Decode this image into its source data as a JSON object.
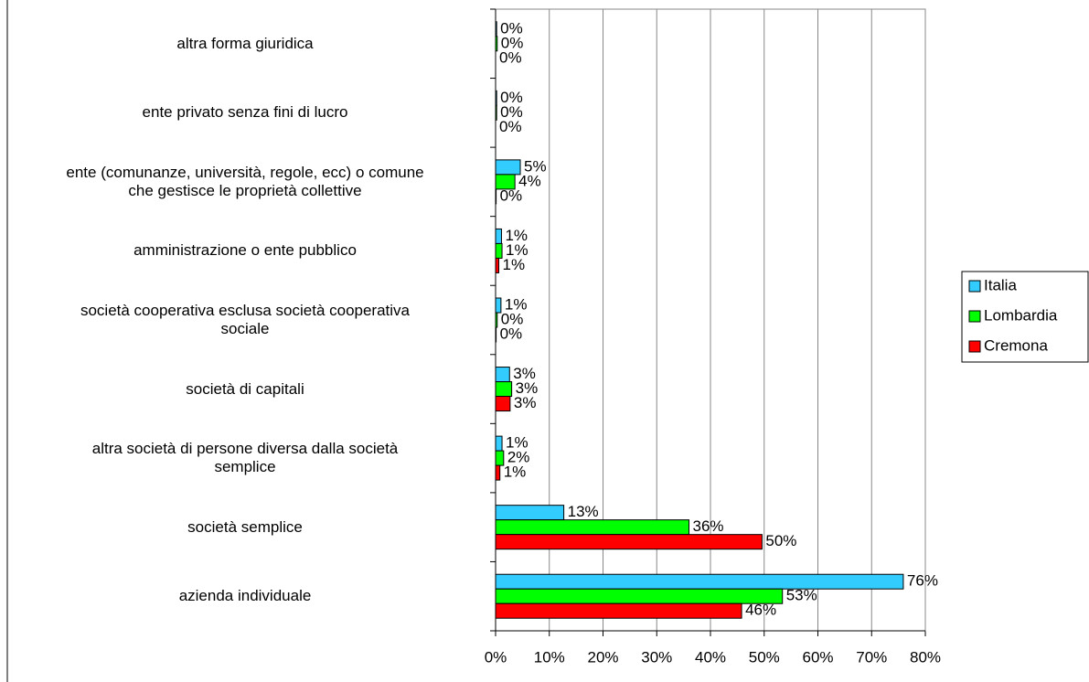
{
  "chart_data": {
    "type": "hbar",
    "categories": [
      "altra forma giuridica",
      "ente privato senza fini di lucro",
      "ente (comunanze, università, regole, ecc) o comune\nche gestisce le proprietà collettive",
      "amministrazione o ente pubblico",
      "società cooperativa esclusa società cooperativa\nsociale",
      "società di capitali",
      "altra società di persone diversa dalla società\nsemplice",
      "società semplice",
      "azienda individuale"
    ],
    "series": [
      {
        "name": "Italia",
        "color": "#33ccff",
        "values": [
          0.2,
          0.2,
          4.6,
          1.1,
          1.0,
          2.6,
          1.2,
          12.7,
          75.9
        ],
        "value_labels": [
          "0%",
          "0%",
          "5%",
          "1%",
          "1%",
          "3%",
          "1%",
          "13%",
          "76%"
        ]
      },
      {
        "name": "Lombardia",
        "color": "#00ff00",
        "values": [
          0.3,
          0.2,
          3.6,
          1.2,
          0.3,
          3.0,
          1.5,
          36.0,
          53.4
        ],
        "value_labels": [
          "0%",
          "0%",
          "4%",
          "1%",
          "0%",
          "3%",
          "2%",
          "36%",
          "53%"
        ]
      },
      {
        "name": "Cremona",
        "color": "#ff0000",
        "values": [
          0.0,
          0.0,
          0.1,
          0.6,
          0.1,
          2.7,
          0.8,
          49.6,
          45.8
        ],
        "value_labels": [
          "0%",
          "0%",
          "0%",
          "1%",
          "0%",
          "3%",
          "1%",
          "50%",
          "46%"
        ]
      }
    ],
    "xlim": [
      0,
      80
    ],
    "xticks": [
      {
        "value": 0,
        "label": "0%"
      },
      {
        "value": 10,
        "label": "10%"
      },
      {
        "value": 20,
        "label": "20%"
      },
      {
        "value": 30,
        "label": "30%"
      },
      {
        "value": 40,
        "label": "40%"
      },
      {
        "value": 50,
        "label": "50%"
      },
      {
        "value": 60,
        "label": "60%"
      },
      {
        "value": 70,
        "label": "70%"
      },
      {
        "value": 80,
        "label": "80%"
      }
    ],
    "grid": true,
    "legend": "right"
  }
}
